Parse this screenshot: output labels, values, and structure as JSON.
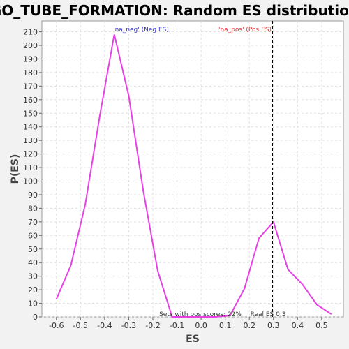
{
  "chart_data": {
    "type": "line",
    "title": "GO_TUBE_FORMATION: Random ES distribution",
    "xlabel": "ES",
    "ylabel": "P(ES)",
    "xlim": [
      -0.66,
      0.59
    ],
    "ylim": [
      0,
      218
    ],
    "xticks": [
      "-0.6",
      "-0.5",
      "-0.4",
      "-0.3",
      "-0.2",
      "-0.1",
      "0.0",
      "0.1",
      "0.2",
      "0.3",
      "0.4",
      "0.5"
    ],
    "xtick_values": [
      -0.6,
      -0.5,
      -0.4,
      -0.3,
      -0.2,
      -0.1,
      0.0,
      0.1,
      0.2,
      0.3,
      0.4,
      0.5
    ],
    "yticks": [
      "0",
      "10",
      "20",
      "30",
      "40",
      "50",
      "60",
      "70",
      "80",
      "90",
      "100",
      "110",
      "120",
      "130",
      "140",
      "150",
      "160",
      "170",
      "180",
      "190",
      "200",
      "210"
    ],
    "ytick_values": [
      0,
      10,
      20,
      30,
      40,
      50,
      60,
      70,
      80,
      90,
      100,
      110,
      120,
      130,
      140,
      150,
      160,
      170,
      180,
      190,
      200,
      210
    ],
    "grid": true,
    "series": [
      {
        "name": "",
        "color": "#e640e6",
        "x": [
          -0.6,
          -0.54,
          -0.48,
          -0.42,
          -0.36,
          -0.3,
          -0.24,
          -0.18,
          -0.12,
          -0.06,
          0.0,
          0.06,
          0.12,
          0.18,
          0.24,
          0.3,
          0.36,
          0.42,
          0.48,
          0.54
        ],
        "y": [
          13,
          38,
          83,
          148,
          208,
          163,
          93,
          34,
          0,
          0,
          0,
          0,
          1,
          21,
          58,
          70,
          35,
          24,
          9,
          2
        ]
      }
    ],
    "legend": {
      "placement": "top",
      "neg_label": "'na_neg' (Neg ES)",
      "neg_color": "#3030d0",
      "pos_label": "'na_pos' (Pos ES)",
      "pos_color": "#e03030"
    },
    "real_es": {
      "value": 0.295,
      "label": "Real ES 0.3"
    },
    "note": "Sets with pos scores: 22%"
  }
}
